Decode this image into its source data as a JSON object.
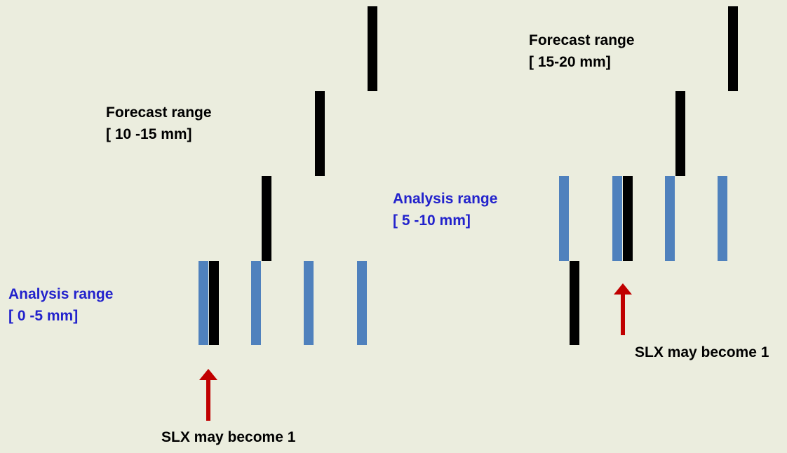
{
  "colors": {
    "background": "#ebedde",
    "analysis_text": "#2222cc",
    "analysis_bar": "#4f81bd",
    "forecast_bar": "#000000",
    "arrow": "#c00000"
  },
  "left_panel": {
    "forecast_label_line1": "Forecast range",
    "forecast_label_line2": "[ 10 -15  mm]",
    "analysis_label_line1": "Analysis range",
    "analysis_label_line2": "[ 0 -5 mm]",
    "note": "SLX may become 1",
    "arrow_icon": "up-arrow-icon"
  },
  "right_panel": {
    "forecast_label_line1": "Forecast range",
    "forecast_label_line2": "[ 15-20  mm]",
    "analysis_label_line1": "Analysis range",
    "analysis_label_line2": "[ 5 -10 mm]",
    "note": "SLX may become 1",
    "arrow_icon": "up-arrow-icon"
  }
}
